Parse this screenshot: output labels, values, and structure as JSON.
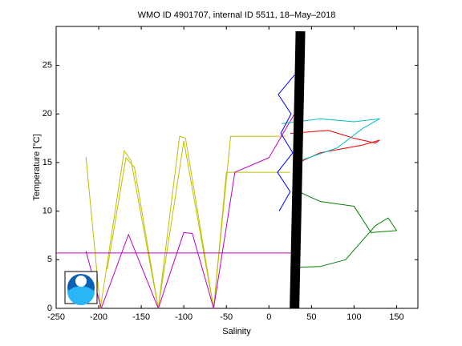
{
  "chart_data": {
    "type": "line",
    "title": "WMO ID 4901707, internal ID 5511, 18–May–2018",
    "xlabel": "Salinity",
    "ylabel": "Temperature [°C]",
    "xlim": [
      -250,
      175
    ],
    "ylim": [
      0,
      29
    ],
    "xticks": [
      -250,
      -200,
      -150,
      -100,
      -50,
      0,
      50,
      100,
      150
    ],
    "yticks": [
      0,
      5,
      10,
      15,
      20,
      25
    ],
    "series": [
      {
        "color": "#bfbf00",
        "width": 1,
        "x": [
          -215,
          -198,
          -170,
          -162,
          -130,
          -105,
          -98,
          -65,
          -45,
          20
        ],
        "values": [
          15.6,
          0,
          16.2,
          15.2,
          0,
          17.7,
          17.5,
          0,
          17.7,
          17.7
        ]
      },
      {
        "color": "#bfbf00",
        "width": 1,
        "x": [
          -190,
          -168,
          -158,
          -130,
          -100,
          -65,
          -50,
          25
        ],
        "values": [
          4,
          15.5,
          14.5,
          0,
          17.2,
          0,
          14,
          14
        ]
      },
      {
        "color": "#bf00bf",
        "width": 1,
        "x": [
          -215,
          -197,
          -165,
          -130,
          -100,
          -90,
          -65,
          -40,
          0,
          30
        ],
        "values": [
          5.9,
          0,
          7.6,
          0,
          7.8,
          7.7,
          0,
          14,
          15.5,
          20
        ]
      },
      {
        "color": "#bf00bf",
        "width": 1,
        "x": [
          -250,
          30
        ],
        "values": [
          5.7,
          5.7
        ]
      },
      {
        "color": "#008000",
        "width": 1,
        "x": [
          25,
          60,
          90,
          110,
          125,
          140,
          150,
          120,
          100,
          60,
          35
        ],
        "values": [
          4.2,
          4.3,
          5,
          7,
          8.5,
          9.3,
          8,
          7.8,
          10.5,
          11,
          12
        ]
      },
      {
        "color": "#ff0000",
        "width": 1,
        "x": [
          25,
          70,
          100,
          125,
          130,
          110,
          60,
          35
        ],
        "values": [
          18,
          18.3,
          17.5,
          17,
          17.3,
          16.8,
          16,
          15
        ]
      },
      {
        "color": "#00bfbf",
        "width": 1,
        "x": [
          15,
          60,
          100,
          130,
          110,
          80,
          30
        ],
        "values": [
          19,
          19.5,
          19.2,
          19.5,
          18.5,
          16.5,
          15
        ]
      },
      {
        "color": "#0000ff",
        "width": 1,
        "x": [
          12,
          25,
          10,
          28,
          14,
          26,
          11,
          30
        ],
        "values": [
          10,
          12,
          14,
          16,
          18,
          20,
          22,
          24
        ]
      },
      {
        "color": "#000000",
        "width": 12,
        "x": [
          30,
          31,
          32,
          33,
          34,
          35,
          36,
          37
        ],
        "values": [
          0,
          4,
          8,
          12,
          16,
          20,
          24,
          28.5
        ]
      }
    ]
  }
}
